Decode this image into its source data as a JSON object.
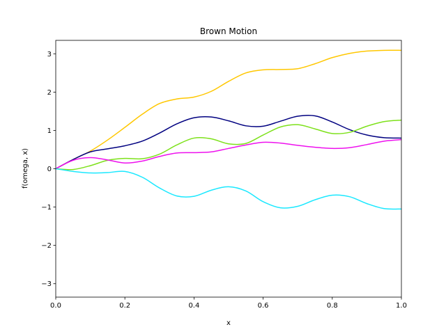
{
  "chart_data": {
    "type": "line",
    "title": "Brown Motion",
    "xlabel": "x",
    "ylabel": "f(omega, x)",
    "xlim": [
      0.0,
      1.0
    ],
    "ylim": [
      -3.35,
      3.35
    ],
    "xticks": [
      "0.0",
      "0.2",
      "0.4",
      "0.6",
      "0.8",
      "1.0"
    ],
    "xtick_values": [
      0.0,
      0.2,
      0.4,
      0.6,
      0.8,
      1.0
    ],
    "yticks": [
      "−3",
      "−2",
      "−1",
      "0",
      "1",
      "2",
      "3"
    ],
    "ytick_values": [
      -3,
      -2,
      -1,
      0,
      1,
      2,
      3
    ],
    "grid": false,
    "legend": "none",
    "x": [
      0.0,
      0.05,
      0.1,
      0.15,
      0.2,
      0.25,
      0.3,
      0.35,
      0.4,
      0.45,
      0.5,
      0.55,
      0.6,
      0.65,
      0.7,
      0.75,
      0.8,
      0.85,
      0.9,
      0.95,
      1.0
    ],
    "series": [
      {
        "color": "#ffc700",
        "values": [
          0.0,
          0.24,
          0.46,
          0.75,
          1.08,
          1.42,
          1.7,
          1.82,
          1.87,
          2.02,
          2.28,
          2.5,
          2.58,
          2.59,
          2.61,
          2.74,
          2.9,
          3.01,
          3.07,
          3.09,
          3.09
        ]
      },
      {
        "color": "#000080",
        "values": [
          0.0,
          0.24,
          0.44,
          0.52,
          0.6,
          0.72,
          0.93,
          1.17,
          1.33,
          1.35,
          1.25,
          1.12,
          1.11,
          1.24,
          1.37,
          1.38,
          1.22,
          1.02,
          0.88,
          0.81,
          0.8
        ]
      },
      {
        "color": "#7de11a",
        "values": [
          0.0,
          -0.02,
          0.08,
          0.22,
          0.27,
          0.26,
          0.38,
          0.62,
          0.8,
          0.78,
          0.65,
          0.66,
          0.88,
          1.09,
          1.15,
          1.04,
          0.92,
          0.95,
          1.11,
          1.23,
          1.27
        ]
      },
      {
        "color": "#ee10ee",
        "values": [
          0.0,
          0.22,
          0.29,
          0.23,
          0.15,
          0.2,
          0.32,
          0.41,
          0.42,
          0.44,
          0.53,
          0.62,
          0.69,
          0.67,
          0.61,
          0.56,
          0.53,
          0.55,
          0.63,
          0.72,
          0.76
        ]
      },
      {
        "color": "#1ae8ff",
        "values": [
          0.0,
          -0.07,
          -0.11,
          -0.1,
          -0.07,
          -0.22,
          -0.5,
          -0.71,
          -0.72,
          -0.56,
          -0.47,
          -0.58,
          -0.86,
          -1.02,
          -0.98,
          -0.81,
          -0.69,
          -0.73,
          -0.91,
          -1.04,
          -1.05
        ]
      }
    ]
  }
}
